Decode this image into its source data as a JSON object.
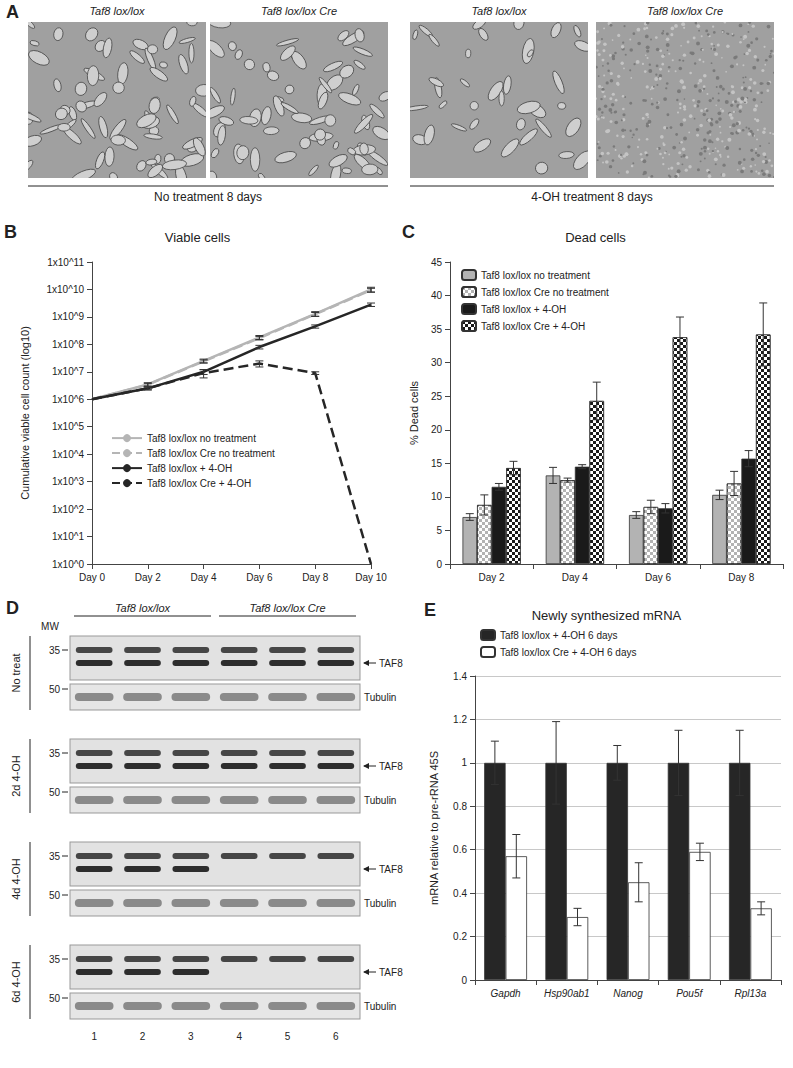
{
  "panel_a": {
    "label": "A",
    "groups": [
      {
        "label": "No treatment 8 days",
        "images": [
          "Taf8 lox/lox",
          "Taf8 lox/lox Cre"
        ]
      },
      {
        "label": "4-OH treatment 8 days",
        "images": [
          "Taf8 lox/lox",
          "Taf8 lox/lox Cre"
        ]
      }
    ]
  },
  "chart_data": [
    {
      "panel": "B",
      "type": "line",
      "title": "Viable cells",
      "y_label": "Cumulative viable cell count (log10)",
      "categories": [
        "Day 0",
        "Day 2",
        "Day 4",
        "Day 6",
        "Day 8",
        "Day 10"
      ],
      "log": "y",
      "ylim": [
        1,
        100000000000
      ],
      "yticks": [
        {
          "value": 1,
          "label": "1x10^0"
        },
        {
          "value": 10,
          "label": "1x10^1"
        },
        {
          "value": 100,
          "label": "1x10^2"
        },
        {
          "value": 1000,
          "label": "1x10^3"
        },
        {
          "value": 10000,
          "label": "1x10^4"
        },
        {
          "value": 100000,
          "label": "1x10^5"
        },
        {
          "value": 1000000,
          "label": "1x10^6"
        },
        {
          "value": 10000000,
          "label": "1x10^7"
        },
        {
          "value": 100000000,
          "label": "1x10^8"
        },
        {
          "value": 1000000000,
          "label": "1x10^9"
        },
        {
          "value": 10000000000,
          "label": "1x10^10"
        },
        {
          "value": 100000000000,
          "label": "1x10^11"
        }
      ],
      "grid": false,
      "legend": "left",
      "series": [
        {
          "name": "Taf8 lox/lox no treatment",
          "color": "#b5b5b5",
          "line_style": "solid",
          "values": [
            1000000,
            3500000,
            25000000,
            180000000,
            1300000000,
            10000000000
          ],
          "errors": [
            0,
            500000,
            4000000,
            30000000,
            250000000,
            2000000000
          ]
        },
        {
          "name": "Taf8 lox/lox Cre no treatment",
          "color": "#b5b5b5",
          "line_style": "dashed",
          "values": [
            1000000,
            3400000,
            24000000,
            170000000,
            1250000000,
            9500000000
          ],
          "errors": [
            0,
            400000,
            3000000,
            25000000,
            200000000,
            1500000000
          ]
        },
        {
          "name": "Taf8 lox/lox + 4-OH",
          "color": "#262626",
          "line_style": "solid",
          "values": [
            1000000,
            2500000,
            10000000,
            80000000,
            450000000,
            2800000000
          ],
          "errors": [
            0,
            300000,
            2000000,
            12000000,
            60000000,
            400000000
          ]
        },
        {
          "name": "Taf8 lox/lox Cre + 4-OH",
          "color": "#262626",
          "line_style": "dashed",
          "values": [
            1000000,
            2500000,
            9000000,
            20000000,
            9000000,
            1
          ],
          "errors": [
            0,
            300000,
            3000000,
            5000000,
            1000000,
            0
          ]
        }
      ]
    },
    {
      "panel": "C",
      "type": "bar",
      "title": "Dead cells",
      "y_label": "% Dead cells",
      "categories": [
        "Day 2",
        "Day 4",
        "Day 6",
        "Day 8"
      ],
      "ylim": [
        0,
        45
      ],
      "yticks": [
        0,
        5,
        10,
        15,
        20,
        25,
        30,
        35,
        40,
        45
      ],
      "grid": false,
      "legend": "top-left",
      "series": [
        {
          "name": "Taf8 lox/lox no treatment",
          "color": "#b3b3b3",
          "marker": "solid",
          "values": [
            7,
            13.2,
            7.3,
            10.3
          ],
          "errors": [
            0.5,
            1.2,
            0.5,
            0.7
          ]
        },
        {
          "name": "Taf8 lox/lox Cre no treatment",
          "color": "#b3b3b3",
          "marker": "checkered",
          "values": [
            8.8,
            12.5,
            8.5,
            12
          ],
          "errors": [
            1.5,
            0.3,
            1,
            1.8
          ]
        },
        {
          "name": "Taf8 lox/lox + 4-OH",
          "color": "#1a1a1a",
          "marker": "solid",
          "values": [
            11.5,
            14.5,
            8.3,
            15.7
          ],
          "errors": [
            0.5,
            0.3,
            0.7,
            1.2
          ]
        },
        {
          "name": "Taf8 lox/lox Cre + 4-OH",
          "color": "#1a1a1a",
          "marker": "checkered",
          "values": [
            14.3,
            24.3,
            33.8,
            34.2
          ],
          "errors": [
            1,
            2.8,
            3,
            4.7
          ]
        }
      ]
    },
    {
      "panel": "E",
      "type": "bar",
      "title": "Newly synthesized mRNA",
      "y_label": "mRNA relative to pre-rRNA 45S",
      "categories": [
        "Gapdh",
        "Hsp90ab1",
        "Nanog",
        "Pou5f",
        "Rpl13a"
      ],
      "ylim": [
        0,
        1.4
      ],
      "yticks": [
        0,
        0.2,
        0.4,
        0.6,
        0.8,
        1,
        1.2,
        1.4
      ],
      "grid": true,
      "legend": "top",
      "series": [
        {
          "name": "Taf8 lox/lox + 4-OH 6 days",
          "color": "#262626",
          "marker": "solid",
          "values": [
            1,
            1,
            1,
            1,
            1
          ],
          "errors": [
            0.1,
            0.19,
            0.08,
            0.15,
            0.15
          ]
        },
        {
          "name": "Taf8 lox/lox Cre + 4-OH 6 days",
          "color": "#ffffff",
          "marker": "solid",
          "values": [
            0.57,
            0.29,
            0.45,
            0.59,
            0.33
          ],
          "errors": [
            0.1,
            0.04,
            0.09,
            0.04,
            0.03
          ]
        }
      ]
    }
  ],
  "panel_d": {
    "label": "D",
    "mw_label": "MW",
    "taf8_label": "TAF8",
    "tubulin_label": "Tubulin",
    "groups": [
      {
        "label": "Taf8 lox/lox",
        "lanes": [
          1,
          2,
          3
        ]
      },
      {
        "label": "Taf8 lox/lox Cre",
        "lanes": [
          4,
          5,
          6
        ]
      }
    ],
    "rows": [
      {
        "label": "No treat",
        "taf8_mw": 35,
        "tubulin_mw": 50,
        "taf8_band": [
          true,
          true,
          true,
          true,
          true,
          true
        ]
      },
      {
        "label": "2d 4-OH",
        "taf8_mw": 35,
        "tubulin_mw": 50,
        "taf8_band": [
          true,
          true,
          true,
          true,
          true,
          true
        ]
      },
      {
        "label": "4d 4-OH",
        "taf8_mw": 35,
        "tubulin_mw": 50,
        "taf8_band": [
          true,
          true,
          true,
          false,
          false,
          false
        ]
      },
      {
        "label": "6d 4-OH",
        "taf8_mw": 35,
        "tubulin_mw": 50,
        "taf8_band": [
          true,
          true,
          true,
          false,
          false,
          false
        ]
      }
    ]
  }
}
